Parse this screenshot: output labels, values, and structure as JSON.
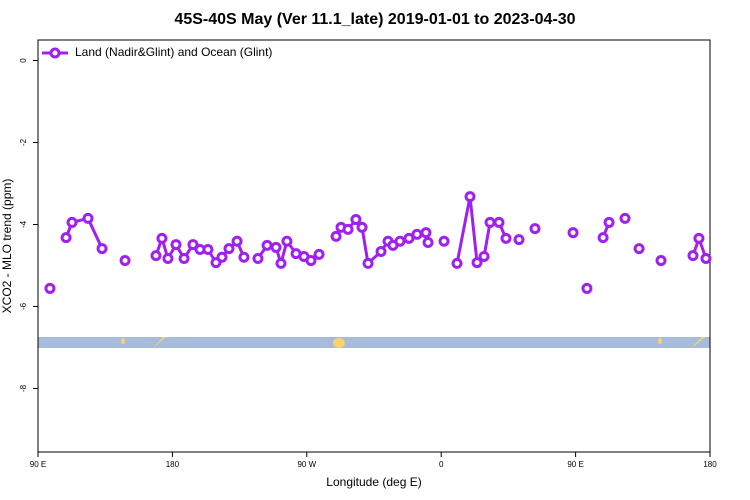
{
  "chart_data": {
    "type": "line",
    "title": "45S-40S May (Ver 11.1_late)   2019-01-01 to 2023-04-30",
    "x_label": "Longitude (deg E)",
    "y_label": "XCO2 - MLO trend (ppm)",
    "xlim": [
      90,
      540
    ],
    "xticks": [
      {
        "value": 90,
        "label": "90 E"
      },
      {
        "value": 180,
        "label": "180"
      },
      {
        "value": 270,
        "label": "90 W"
      },
      {
        "value": 360,
        "label": "0"
      },
      {
        "value": 450,
        "label": "90 E"
      },
      {
        "value": 540,
        "label": "180"
      }
    ],
    "ylim": [
      -9.55,
      0.5
    ],
    "yticks": [
      0,
      -2,
      -4,
      -6,
      -8
    ],
    "legend": "top-left",
    "series": [
      {
        "name": "Land (Nadir&Glint) and Ocean (Glint)",
        "color": "#a020f0",
        "x": [
          98,
          null,
          108.8,
          112.8,
          123.5,
          132.9,
          null,
          148.3,
          null,
          169,
          173,
          177,
          182.4,
          187.8,
          193.8,
          198.5,
          203.8,
          209.2,
          213.2,
          217.9,
          223.3,
          227.9,
          null,
          237.3,
          243.4,
          249.4,
          252.7,
          256.7,
          262.8,
          268.1,
          272.8,
          278.2,
          null,
          289.6,
          292.9,
          297.6,
          302.9,
          307,
          311,
          319.7,
          324.4,
          327.7,
          332.4,
          338.4,
          343.8,
          349.8,
          351.2,
          null,
          361.9,
          null,
          370.6,
          379.3,
          384,
          388.7,
          392.7,
          398.7,
          403.4,
          null,
          412.1,
          null,
          422.8,
          null,
          448.3,
          null,
          457.6,
          null,
          468.4,
          472.4,
          null,
          483.1,
          null,
          492.5,
          null,
          507.2,
          null,
          528.6,
          532.6,
          537.3
        ],
        "values": [
          -5.56,
          null,
          -4.32,
          -3.95,
          -3.85,
          -4.59,
          null,
          -4.88,
          null,
          -4.76,
          -4.34,
          -4.83,
          -4.49,
          -4.83,
          -4.49,
          -4.61,
          -4.61,
          -4.93,
          -4.8,
          -4.59,
          -4.41,
          -4.8,
          null,
          -4.83,
          -4.51,
          -4.56,
          -4.95,
          -4.41,
          -4.71,
          -4.78,
          -4.88,
          -4.73,
          null,
          -4.29,
          -4.07,
          -4.12,
          -3.88,
          -4.07,
          -4.95,
          -4.66,
          -4.41,
          -4.51,
          -4.41,
          -4.34,
          -4.24,
          -4.2,
          -4.44,
          null,
          -4.41,
          null,
          -4.95,
          -3.32,
          -4.93,
          -4.78,
          -3.95,
          -3.95,
          -4.34,
          null,
          -4.37,
          null,
          -4.1,
          null,
          -4.2,
          null,
          -5.56,
          null,
          -4.32,
          -3.95,
          null,
          -3.85,
          null,
          -4.59,
          null,
          -4.88,
          null,
          -4.76,
          -4.34,
          -4.83
        ]
      }
    ]
  }
}
